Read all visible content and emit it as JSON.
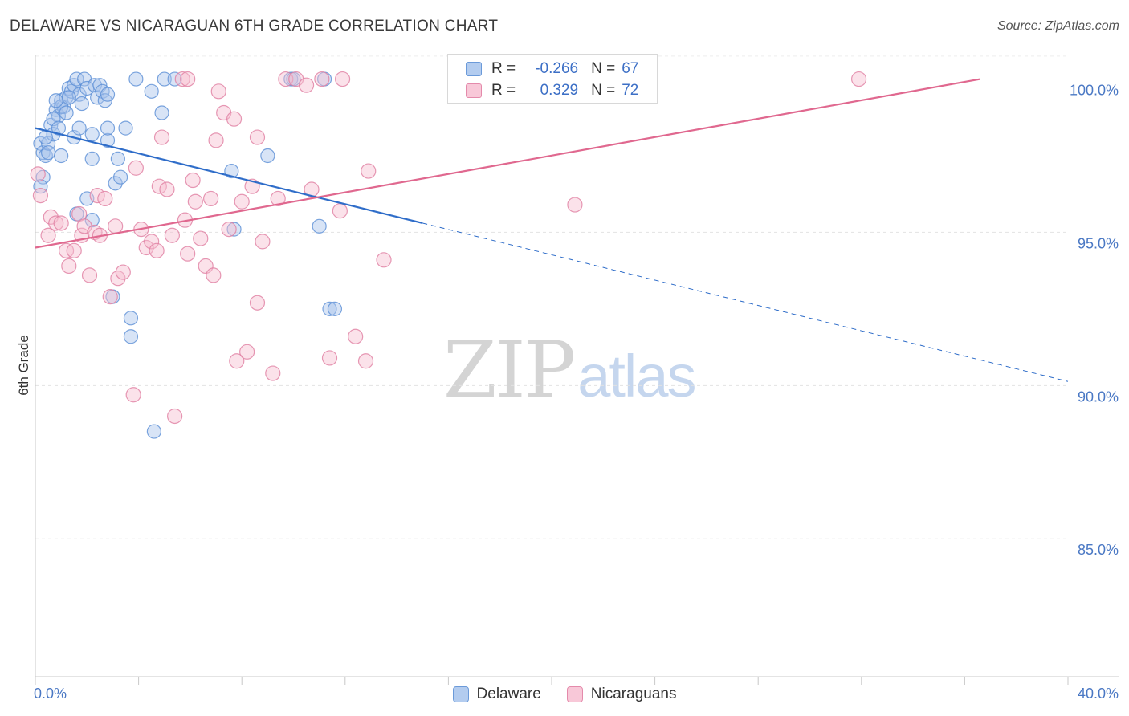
{
  "chart_data": {
    "type": "scatter",
    "title": "DELAWARE VS NICARAGUAN 6TH GRADE CORRELATION CHART",
    "source": "Source: ZipAtlas.com",
    "ylabel": "6th Grade",
    "xlim": [
      0,
      40
    ],
    "ylim": [
      80.5,
      100.8
    ],
    "x_tick_labels": [
      "0.0%",
      "40.0%"
    ],
    "y_ticks": [
      {
        "value": 100,
        "label": "100.0%"
      },
      {
        "value": 95,
        "label": "95.0%"
      },
      {
        "value": 90,
        "label": "90.0%"
      },
      {
        "value": 85,
        "label": "85.0%"
      }
    ],
    "grid": true,
    "legend_position": "top-center",
    "watermark": {
      "zip": "ZIP",
      "atlas": "atlas"
    },
    "series": [
      {
        "name": "Delaware",
        "color": "#5b8fd6",
        "fill": "#a9c4ec",
        "legend": {
          "r_label": "R =",
          "r_value": "-0.266",
          "n_label": "N =",
          "n_value": "67"
        },
        "trend": {
          "x0": 0,
          "y0": 98.4,
          "x1": 15,
          "y1": 95.3,
          "dashed_to_x": 40
        },
        "points": [
          [
            0.2,
            97.9
          ],
          [
            0.3,
            97.6
          ],
          [
            0.4,
            97.5
          ],
          [
            0.5,
            97.9
          ],
          [
            0.3,
            96.8
          ],
          [
            0.2,
            96.5
          ],
          [
            0.6,
            98.5
          ],
          [
            0.7,
            98.2
          ],
          [
            0.8,
            99.0
          ],
          [
            0.9,
            98.8
          ],
          [
            1.0,
            99.3
          ],
          [
            1.1,
            99.1
          ],
          [
            0.7,
            98.7
          ],
          [
            1.2,
            99.4
          ],
          [
            1.3,
            99.7
          ],
          [
            1.4,
            99.6
          ],
          [
            1.5,
            99.8
          ],
          [
            1.6,
            100.0
          ],
          [
            1.7,
            99.5
          ],
          [
            1.8,
            99.2
          ],
          [
            1.9,
            100.0
          ],
          [
            2.0,
            99.7
          ],
          [
            2.3,
            99.8
          ],
          [
            2.4,
            99.4
          ],
          [
            2.5,
            99.8
          ],
          [
            2.6,
            99.6
          ],
          [
            2.7,
            99.3
          ],
          [
            1.0,
            97.5
          ],
          [
            1.5,
            98.1
          ],
          [
            1.7,
            98.4
          ],
          [
            2.0,
            96.1
          ],
          [
            1.6,
            95.6
          ],
          [
            2.2,
            98.2
          ],
          [
            2.2,
            97.4
          ],
          [
            2.8,
            98.0
          ],
          [
            2.8,
            98.4
          ],
          [
            3.2,
            97.4
          ],
          [
            3.1,
            96.6
          ],
          [
            3.3,
            96.8
          ],
          [
            3.5,
            98.4
          ],
          [
            3.9,
            100.0
          ],
          [
            4.5,
            99.6
          ],
          [
            4.9,
            98.9
          ],
          [
            5.0,
            100.0
          ],
          [
            5.4,
            100.0
          ],
          [
            3.0,
            92.9
          ],
          [
            3.7,
            92.2
          ],
          [
            3.7,
            91.6
          ],
          [
            4.6,
            88.5
          ],
          [
            7.6,
            97.0
          ],
          [
            7.7,
            95.1
          ],
          [
            9.0,
            97.5
          ],
          [
            9.9,
            100.0
          ],
          [
            10.0,
            100.0
          ],
          [
            11.2,
            100.0
          ],
          [
            11.0,
            95.2
          ],
          [
            11.4,
            92.5
          ],
          [
            11.6,
            92.5
          ],
          [
            1.0,
            99.1
          ],
          [
            1.3,
            99.4
          ],
          [
            1.2,
            98.9
          ],
          [
            2.2,
            95.4
          ],
          [
            0.5,
            97.6
          ],
          [
            0.9,
            98.4
          ],
          [
            2.8,
            99.5
          ],
          [
            0.4,
            98.1
          ],
          [
            0.8,
            99.3
          ]
        ]
      },
      {
        "name": "Nicaraguans",
        "color": "#e07ea1",
        "fill": "#f6bfd1",
        "legend": {
          "r_label": "R =",
          "r_value": "0.329",
          "n_label": "N =",
          "n_value": "72"
        },
        "trend": {
          "x0": 0,
          "y0": 94.5,
          "x1": 36.6,
          "y1": 100.0
        },
        "points": [
          [
            0.1,
            96.9
          ],
          [
            0.2,
            96.2
          ],
          [
            0.5,
            94.9
          ],
          [
            0.6,
            95.5
          ],
          [
            0.8,
            95.3
          ],
          [
            1.0,
            95.3
          ],
          [
            1.2,
            94.4
          ],
          [
            1.3,
            93.9
          ],
          [
            1.5,
            94.4
          ],
          [
            1.7,
            95.6
          ],
          [
            1.8,
            94.9
          ],
          [
            1.9,
            95.2
          ],
          [
            2.1,
            93.6
          ],
          [
            2.3,
            95.0
          ],
          [
            2.4,
            96.2
          ],
          [
            2.5,
            94.9
          ],
          [
            2.7,
            96.1
          ],
          [
            2.9,
            92.9
          ],
          [
            3.1,
            95.2
          ],
          [
            3.2,
            93.5
          ],
          [
            3.4,
            93.7
          ],
          [
            3.8,
            89.7
          ],
          [
            3.9,
            97.1
          ],
          [
            4.1,
            95.1
          ],
          [
            4.3,
            94.5
          ],
          [
            4.5,
            94.7
          ],
          [
            4.7,
            94.4
          ],
          [
            4.8,
            96.5
          ],
          [
            4.9,
            98.1
          ],
          [
            5.1,
            96.4
          ],
          [
            5.3,
            94.9
          ],
          [
            5.4,
            89.0
          ],
          [
            5.7,
            100.0
          ],
          [
            5.8,
            95.4
          ],
          [
            5.9,
            94.3
          ],
          [
            6.1,
            96.7
          ],
          [
            6.2,
            96.0
          ],
          [
            6.4,
            94.8
          ],
          [
            6.6,
            93.9
          ],
          [
            6.8,
            96.1
          ],
          [
            6.9,
            93.6
          ],
          [
            7.0,
            98.0
          ],
          [
            7.1,
            99.6
          ],
          [
            7.3,
            98.9
          ],
          [
            7.5,
            95.1
          ],
          [
            7.7,
            98.7
          ],
          [
            7.8,
            90.8
          ],
          [
            8.0,
            96.0
          ],
          [
            8.2,
            91.1
          ],
          [
            8.4,
            96.5
          ],
          [
            8.6,
            98.1
          ],
          [
            8.6,
            92.7
          ],
          [
            8.8,
            94.7
          ],
          [
            9.2,
            90.4
          ],
          [
            9.4,
            96.1
          ],
          [
            9.7,
            100.0
          ],
          [
            10.1,
            100.0
          ],
          [
            10.5,
            99.8
          ],
          [
            10.7,
            96.4
          ],
          [
            11.1,
            100.0
          ],
          [
            11.4,
            90.9
          ],
          [
            11.8,
            95.7
          ],
          [
            11.9,
            100.0
          ],
          [
            12.4,
            91.6
          ],
          [
            12.8,
            90.8
          ],
          [
            12.9,
            97.0
          ],
          [
            13.5,
            94.1
          ],
          [
            20.9,
            95.9
          ],
          [
            21.5,
            100.0
          ],
          [
            23.6,
            100.0
          ],
          [
            31.9,
            100.0
          ],
          [
            5.9,
            100.0
          ]
        ]
      }
    ]
  }
}
